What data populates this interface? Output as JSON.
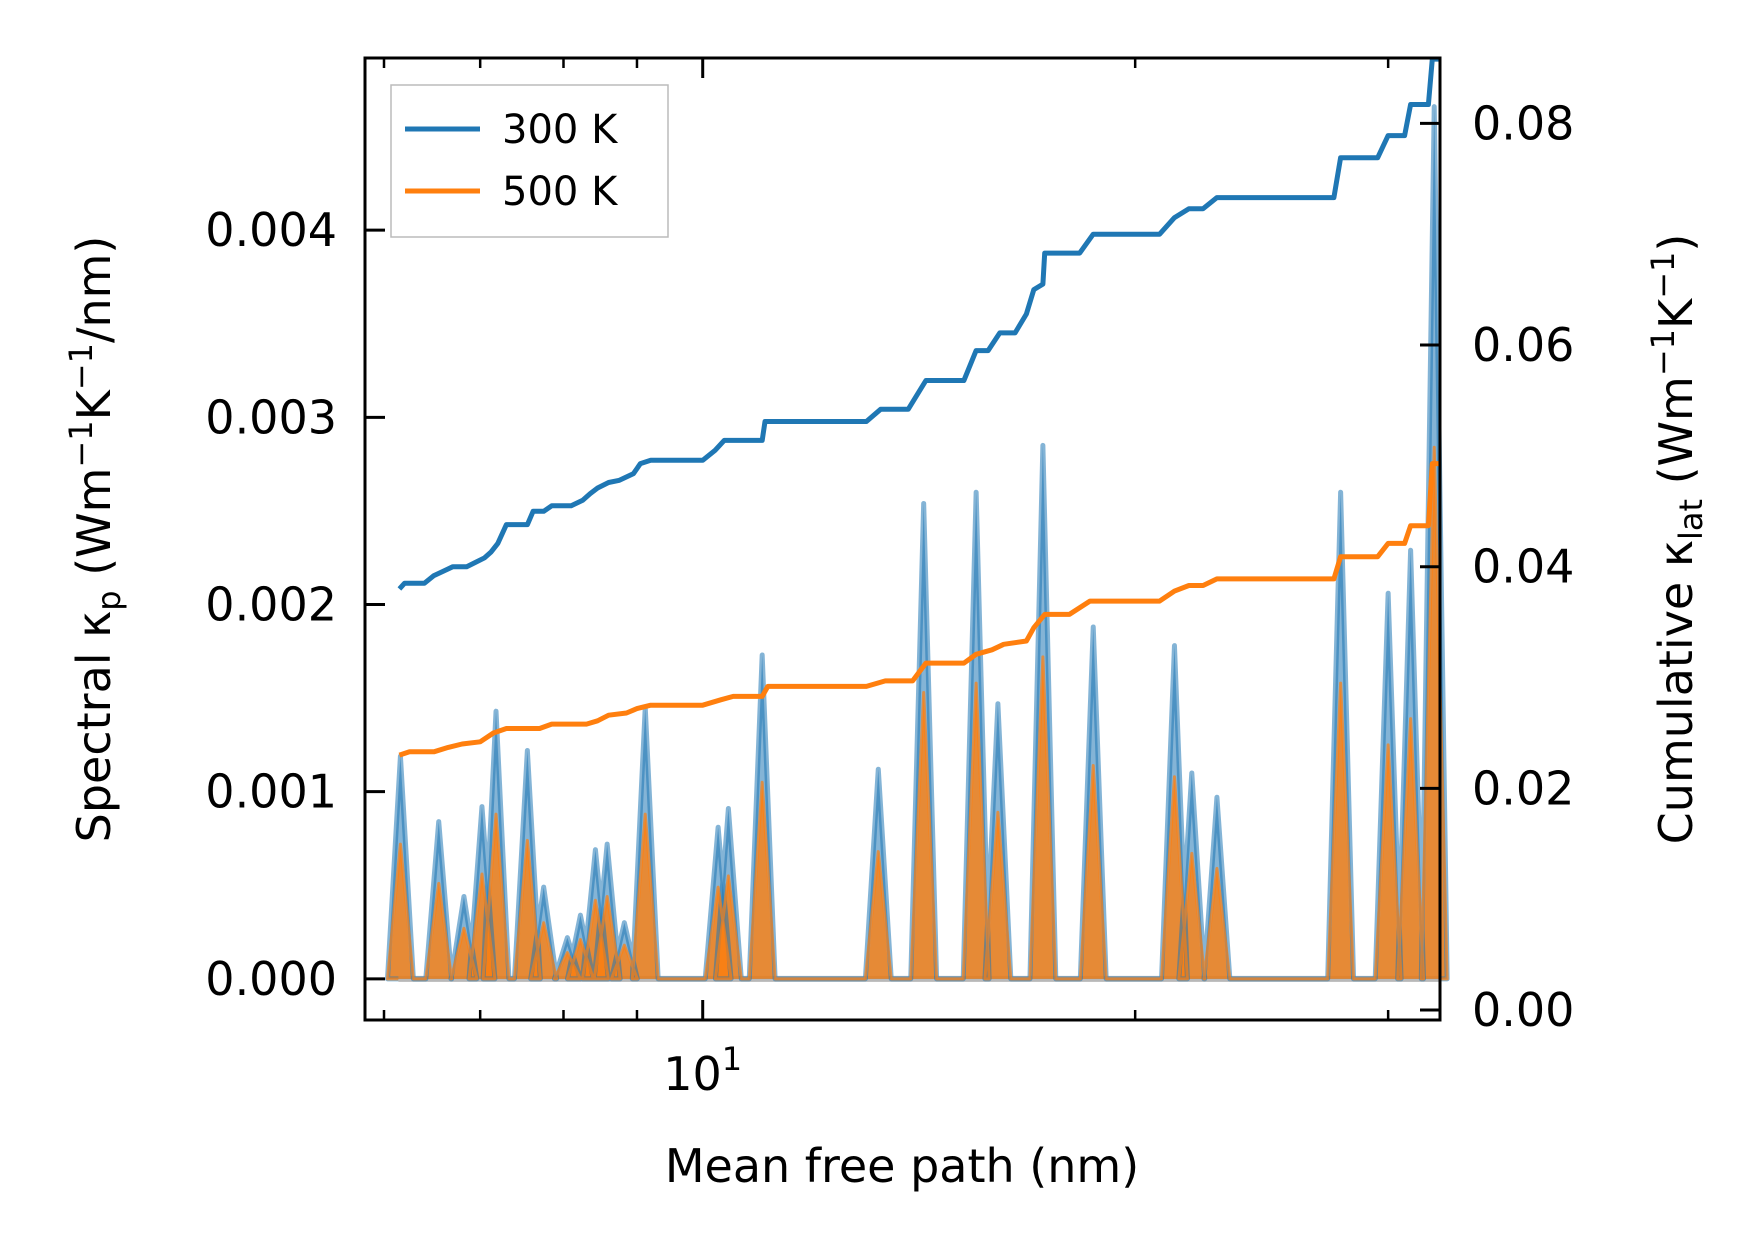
{
  "chart_data": {
    "type": "line",
    "xlabel": "Mean free path (nm)",
    "ylabel_left": {
      "main": "Spectral κ",
      "sub": "p",
      "unit_a": " (Wm",
      "sup1": "−1",
      "unit_b": "K",
      "sup2": "−1",
      "unit_c": "/nm)"
    },
    "ylabel_right": {
      "main": "Cumulative κ",
      "sub": "lat",
      "unit_a": " (Wm",
      "sup1": "−1",
      "unit_b": "K",
      "sup2": "−1",
      "unit_c": ")"
    },
    "x_scale": "log",
    "xlim": [
      5.82,
      32.6
    ],
    "x_tick_label": {
      "base": "10",
      "exp": "1"
    },
    "ylim_left": [
      -0.00022,
      0.00492
    ],
    "ylim_right": [
      -0.0009,
      0.0859
    ],
    "yticks_left": [
      "0.000",
      "0.001",
      "0.002",
      "0.003",
      "0.004"
    ],
    "yticks_right": [
      "0.00",
      "0.02",
      "0.04",
      "0.06",
      "0.08"
    ],
    "colors": {
      "s300": "#1f77b4",
      "s500": "#ff7f0e",
      "fill_gray": "#a0a0a0"
    },
    "legend": {
      "position": "top-left",
      "entries": [
        "300 K",
        "500 K"
      ]
    },
    "spectral_peaks": [
      [
        6.16,
        0.00119,
        0.00072
      ],
      [
        6.55,
        0.00084,
        0.00051
      ],
      [
        6.82,
        0.00044,
        0.00027
      ],
      [
        7.02,
        0.00092,
        0.00056
      ],
      [
        7.18,
        0.00143,
        0.00088
      ],
      [
        7.55,
        0.00122,
        0.00074
      ],
      [
        7.75,
        0.00049,
        0.0003
      ],
      [
        8.05,
        0.00022,
        0.00014
      ],
      [
        8.22,
        0.00034,
        0.00021
      ],
      [
        8.42,
        0.00069,
        0.00042
      ],
      [
        8.58,
        0.00072,
        0.00044
      ],
      [
        8.82,
        0.0003,
        0.00018
      ],
      [
        9.12,
        0.00145,
        0.00088
      ],
      [
        10.25,
        0.00081,
        0.00049
      ],
      [
        10.42,
        0.00091,
        0.00055
      ],
      [
        11.0,
        0.00173,
        0.00105
      ],
      [
        13.25,
        0.00112,
        0.00068
      ],
      [
        14.25,
        0.00254,
        0.00153
      ],
      [
        15.5,
        0.0026,
        0.00158
      ],
      [
        16.05,
        0.00147,
        0.00089
      ],
      [
        17.25,
        0.00285,
        0.00172
      ],
      [
        18.7,
        0.00188,
        0.00114
      ],
      [
        21.3,
        0.00178,
        0.00108
      ],
      [
        21.9,
        0.0011,
        0.00067
      ],
      [
        22.8,
        0.00097,
        0.00059
      ],
      [
        27.8,
        0.0026,
        0.00158
      ],
      [
        30.0,
        0.00206,
        0.00125
      ],
      [
        31.1,
        0.00229,
        0.00139
      ],
      [
        32.3,
        0.00466,
        0.00284
      ]
    ],
    "series": [
      {
        "name": "300 K",
        "cumulative": [
          [
            6.15,
            0.038
          ],
          [
            6.2,
            0.0385
          ],
          [
            6.4,
            0.0385
          ],
          [
            6.5,
            0.0392
          ],
          [
            6.6,
            0.0396
          ],
          [
            6.7,
            0.04
          ],
          [
            6.85,
            0.04
          ],
          [
            6.95,
            0.0404
          ],
          [
            7.05,
            0.0408
          ],
          [
            7.12,
            0.0413
          ],
          [
            7.2,
            0.0421
          ],
          [
            7.3,
            0.0438
          ],
          [
            7.55,
            0.0438
          ],
          [
            7.62,
            0.045
          ],
          [
            7.75,
            0.045
          ],
          [
            7.85,
            0.0455
          ],
          [
            8.1,
            0.0455
          ],
          [
            8.25,
            0.046
          ],
          [
            8.35,
            0.0466
          ],
          [
            8.45,
            0.0471
          ],
          [
            8.6,
            0.0476
          ],
          [
            8.75,
            0.0478
          ],
          [
            8.95,
            0.0484
          ],
          [
            9.05,
            0.0493
          ],
          [
            9.2,
            0.0496
          ],
          [
            10.0,
            0.0496
          ],
          [
            10.2,
            0.0505
          ],
          [
            10.35,
            0.0514
          ],
          [
            11.0,
            0.0514
          ],
          [
            11.05,
            0.0531
          ],
          [
            13.0,
            0.0531
          ],
          [
            13.3,
            0.0542
          ],
          [
            13.9,
            0.0542
          ],
          [
            14.3,
            0.0568
          ],
          [
            15.2,
            0.0568
          ],
          [
            15.5,
            0.0595
          ],
          [
            15.8,
            0.0595
          ],
          [
            16.1,
            0.0611
          ],
          [
            16.5,
            0.0611
          ],
          [
            16.8,
            0.0628
          ],
          [
            17.0,
            0.065
          ],
          [
            17.25,
            0.0655
          ],
          [
            17.3,
            0.0683
          ],
          [
            18.3,
            0.0683
          ],
          [
            18.7,
            0.07
          ],
          [
            20.8,
            0.07
          ],
          [
            21.3,
            0.0715
          ],
          [
            21.8,
            0.0723
          ],
          [
            22.3,
            0.0723
          ],
          [
            22.8,
            0.0733
          ],
          [
            26.5,
            0.0733
          ],
          [
            27.5,
            0.0733
          ],
          [
            27.8,
            0.0769
          ],
          [
            29.5,
            0.0769
          ],
          [
            30.0,
            0.0789
          ],
          [
            30.8,
            0.0789
          ],
          [
            31.1,
            0.0817
          ],
          [
            32.0,
            0.0817
          ],
          [
            32.2,
            0.0858
          ],
          [
            32.55,
            0.0858
          ]
        ]
      },
      {
        "name": "500 K",
        "cumulative": [
          [
            6.15,
            0.023
          ],
          [
            6.25,
            0.0233
          ],
          [
            6.5,
            0.0233
          ],
          [
            6.65,
            0.0237
          ],
          [
            6.8,
            0.024
          ],
          [
            7.0,
            0.0242
          ],
          [
            7.15,
            0.025
          ],
          [
            7.3,
            0.0254
          ],
          [
            7.7,
            0.0254
          ],
          [
            7.85,
            0.0258
          ],
          [
            8.3,
            0.0258
          ],
          [
            8.45,
            0.0261
          ],
          [
            8.6,
            0.0266
          ],
          [
            8.85,
            0.0268
          ],
          [
            9.0,
            0.0272
          ],
          [
            9.2,
            0.0275
          ],
          [
            10.0,
            0.0275
          ],
          [
            10.3,
            0.028
          ],
          [
            10.5,
            0.0283
          ],
          [
            11.0,
            0.0283
          ],
          [
            11.1,
            0.0292
          ],
          [
            13.0,
            0.0292
          ],
          [
            13.4,
            0.0297
          ],
          [
            14.0,
            0.0297
          ],
          [
            14.3,
            0.0313
          ],
          [
            15.2,
            0.0313
          ],
          [
            15.5,
            0.0321
          ],
          [
            15.9,
            0.0325
          ],
          [
            16.2,
            0.033
          ],
          [
            16.8,
            0.0333
          ],
          [
            17.0,
            0.0345
          ],
          [
            17.3,
            0.0357
          ],
          [
            18.0,
            0.0357
          ],
          [
            18.6,
            0.0369
          ],
          [
            20.8,
            0.0369
          ],
          [
            21.3,
            0.0378
          ],
          [
            21.8,
            0.0383
          ],
          [
            22.3,
            0.0383
          ],
          [
            22.8,
            0.0389
          ],
          [
            27.5,
            0.0389
          ],
          [
            27.8,
            0.0409
          ],
          [
            29.5,
            0.0409
          ],
          [
            30.0,
            0.0421
          ],
          [
            30.8,
            0.0421
          ],
          [
            31.1,
            0.0437
          ],
          [
            32.0,
            0.0437
          ],
          [
            32.2,
            0.0493
          ],
          [
            32.55,
            0.0493
          ]
        ]
      }
    ]
  }
}
